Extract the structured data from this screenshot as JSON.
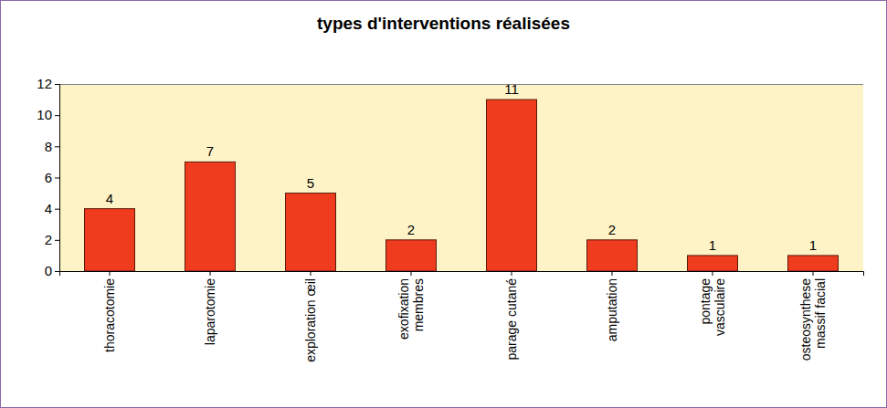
{
  "chart_data": {
    "type": "bar",
    "title": "types d'interventions réalisées",
    "categories": [
      "thoracotomie",
      "laparotomie",
      "exploration œil",
      "exofixation\nmembres",
      "parage cutané",
      "amputation",
      "pontage\nvasculaire",
      "osteosynthese\nmassif facial"
    ],
    "values": [
      4,
      7,
      5,
      2,
      11,
      2,
      1,
      1
    ],
    "color": "#f03c1e",
    "ylim": [
      0,
      12
    ],
    "yticks": [
      0,
      2,
      4,
      6,
      8,
      10,
      12
    ],
    "grid": false,
    "data_labels": true
  }
}
